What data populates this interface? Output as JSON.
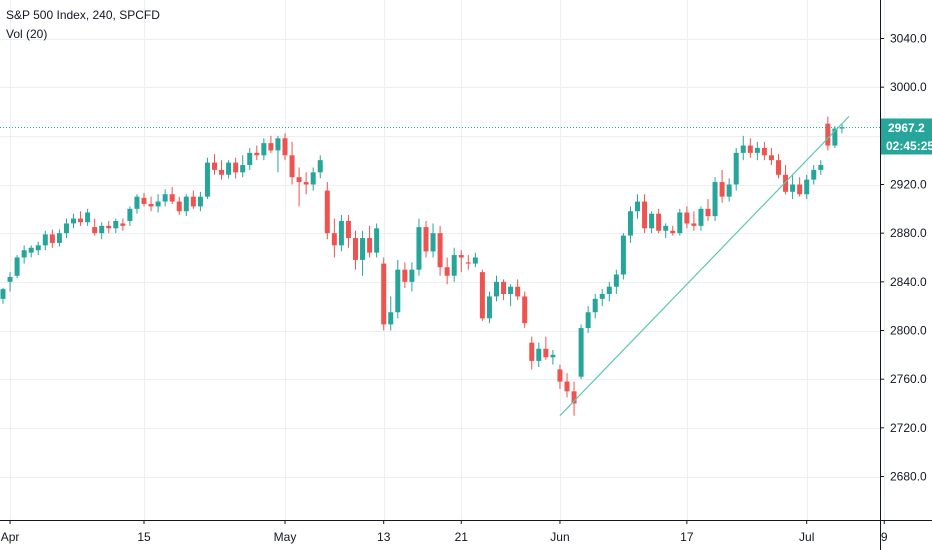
{
  "colors": {
    "up": "#26a69a",
    "down": "#ef5350",
    "grid": "#eceff2",
    "axis_text": "#131722",
    "axis_line": "#131722",
    "price_line": "#26a69a",
    "trendline": "#5cc8b0"
  },
  "legend": {
    "title": "S&P 500 Index, 240, SPCFD",
    "indicator": "Vol (20)"
  },
  "price_axis": {
    "current_price_label": "2967.2",
    "countdown_label": "02:45:25"
  },
  "chart_data": {
    "type": "candlestick",
    "title": "S&P 500 Index, 240, SPCFD",
    "ylim": [
      2660,
      3060
    ],
    "y_ticks": [
      2680,
      2720,
      2760,
      2800,
      2840,
      2880,
      2920,
      2960,
      3000,
      3040
    ],
    "y_tick_labels": [
      "2680.0",
      "2720.0",
      "2760.0",
      "2800.0",
      "2840.0",
      "2880.0",
      "2920.0",
      "",
      "3000.0",
      "3040.0"
    ],
    "x_tick_labels": [
      {
        "label": "Apr",
        "bar": 1
      },
      {
        "label": "15",
        "bar": 20
      },
      {
        "label": "May",
        "bar": 40
      },
      {
        "label": "13",
        "bar": 54
      },
      {
        "label": "21",
        "bar": 65
      },
      {
        "label": "Jun",
        "bar": 79
      },
      {
        "label": "17",
        "bar": 97
      },
      {
        "label": "Jul",
        "bar": 114
      },
      {
        "label": "9",
        "bar": 125
      }
    ],
    "current_price": 2967.2,
    "grid": true,
    "candles": [
      [
        2826,
        2835,
        2822,
        2834
      ],
      [
        2840,
        2848,
        2832,
        2844
      ],
      [
        2845,
        2862,
        2843,
        2860
      ],
      [
        2860,
        2870,
        2855,
        2866
      ],
      [
        2864,
        2870,
        2860,
        2868
      ],
      [
        2866,
        2873,
        2862,
        2870
      ],
      [
        2870,
        2882,
        2866,
        2879
      ],
      [
        2879,
        2883,
        2868,
        2872
      ],
      [
        2872,
        2883,
        2869,
        2880
      ],
      [
        2880,
        2892,
        2876,
        2888
      ],
      [
        2888,
        2896,
        2884,
        2892
      ],
      [
        2892,
        2898,
        2886,
        2889
      ],
      [
        2889,
        2900,
        2886,
        2897
      ],
      [
        2885,
        2892,
        2878,
        2880
      ],
      [
        2880,
        2889,
        2875,
        2886
      ],
      [
        2886,
        2890,
        2880,
        2884
      ],
      [
        2884,
        2892,
        2880,
        2890
      ],
      [
        2888,
        2892,
        2882,
        2886
      ],
      [
        2890,
        2902,
        2886,
        2900
      ],
      [
        2900,
        2912,
        2896,
        2910
      ],
      [
        2909,
        2913,
        2902,
        2904
      ],
      [
        2904,
        2910,
        2898,
        2902
      ],
      [
        2902,
        2912,
        2897,
        2906
      ],
      [
        2906,
        2916,
        2902,
        2912
      ],
      [
        2912,
        2918,
        2904,
        2906
      ],
      [
        2906,
        2910,
        2895,
        2898
      ],
      [
        2898,
        2912,
        2894,
        2910
      ],
      [
        2910,
        2915,
        2900,
        2902
      ],
      [
        2902,
        2914,
        2898,
        2910
      ],
      [
        2910,
        2942,
        2908,
        2938
      ],
      [
        2938,
        2945,
        2928,
        2932
      ],
      [
        2932,
        2940,
        2924,
        2928
      ],
      [
        2928,
        2940,
        2925,
        2938
      ],
      [
        2938,
        2942,
        2925,
        2930
      ],
      [
        2930,
        2944,
        2926,
        2936
      ],
      [
        2936,
        2950,
        2932,
        2946
      ],
      [
        2946,
        2952,
        2940,
        2944
      ],
      [
        2944,
        2958,
        2940,
        2954
      ],
      [
        2954,
        2960,
        2946,
        2948
      ],
      [
        2948,
        2960,
        2930,
        2958
      ],
      [
        2958,
        2962,
        2940,
        2944
      ],
      [
        2944,
        2955,
        2920,
        2926
      ],
      [
        2926,
        2934,
        2902,
        2922
      ],
      [
        2922,
        2930,
        2912,
        2920
      ],
      [
        2920,
        2934,
        2915,
        2930
      ],
      [
        2930,
        2944,
        2925,
        2940
      ],
      [
        2915,
        2922,
        2875,
        2880
      ],
      [
        2880,
        2892,
        2860,
        2870
      ],
      [
        2870,
        2895,
        2865,
        2890
      ],
      [
        2890,
        2895,
        2868,
        2876
      ],
      [
        2876,
        2882,
        2850,
        2858
      ],
      [
        2858,
        2882,
        2845,
        2876
      ],
      [
        2876,
        2886,
        2860,
        2864
      ],
      [
        2864,
        2888,
        2860,
        2884
      ],
      [
        2855,
        2860,
        2800,
        2805
      ],
      [
        2805,
        2828,
        2800,
        2815
      ],
      [
        2815,
        2858,
        2810,
        2850
      ],
      [
        2850,
        2856,
        2835,
        2840
      ],
      [
        2840,
        2856,
        2832,
        2850
      ],
      [
        2850,
        2892,
        2845,
        2885
      ],
      [
        2885,
        2890,
        2860,
        2865
      ],
      [
        2865,
        2888,
        2860,
        2880
      ],
      [
        2880,
        2886,
        2845,
        2852
      ],
      [
        2852,
        2860,
        2838,
        2845
      ],
      [
        2845,
        2868,
        2840,
        2862
      ],
      [
        2862,
        2866,
        2848,
        2860
      ],
      [
        2856,
        2862,
        2850,
        2855
      ],
      [
        2855,
        2864,
        2852,
        2860
      ],
      [
        2848,
        2850,
        2808,
        2810
      ],
      [
        2810,
        2832,
        2806,
        2828
      ],
      [
        2828,
        2845,
        2824,
        2840
      ],
      [
        2840,
        2842,
        2825,
        2830
      ],
      [
        2830,
        2838,
        2820,
        2836
      ],
      [
        2836,
        2842,
        2825,
        2828
      ],
      [
        2828,
        2832,
        2802,
        2806
      ],
      [
        2790,
        2795,
        2768,
        2775
      ],
      [
        2775,
        2790,
        2770,
        2785
      ],
      [
        2785,
        2795,
        2776,
        2778
      ],
      [
        2778,
        2784,
        2772,
        2780
      ],
      [
        2768,
        2772,
        2752,
        2758
      ],
      [
        2758,
        2765,
        2745,
        2750
      ],
      [
        2750,
        2758,
        2730,
        2740
      ],
      [
        2762,
        2805,
        2760,
        2802
      ],
      [
        2802,
        2820,
        2798,
        2815
      ],
      [
        2815,
        2830,
        2810,
        2826
      ],
      [
        2826,
        2834,
        2820,
        2830
      ],
      [
        2830,
        2840,
        2824,
        2836
      ],
      [
        2836,
        2850,
        2830,
        2846
      ],
      [
        2846,
        2880,
        2842,
        2878
      ],
      [
        2878,
        2902,
        2872,
        2898
      ],
      [
        2898,
        2912,
        2892,
        2906
      ],
      [
        2906,
        2912,
        2880,
        2884
      ],
      [
        2884,
        2898,
        2880,
        2896
      ],
      [
        2896,
        2900,
        2880,
        2882
      ],
      [
        2882,
        2888,
        2876,
        2886
      ],
      [
        2882,
        2886,
        2878,
        2880
      ],
      [
        2880,
        2900,
        2878,
        2897
      ],
      [
        2897,
        2902,
        2884,
        2888
      ],
      [
        2888,
        2898,
        2882,
        2886
      ],
      [
        2886,
        2902,
        2882,
        2900
      ],
      [
        2900,
        2908,
        2890,
        2894
      ],
      [
        2894,
        2926,
        2890,
        2922
      ],
      [
        2922,
        2932,
        2905,
        2910
      ],
      [
        2910,
        2925,
        2906,
        2920
      ],
      [
        2920,
        2950,
        2915,
        2946
      ],
      [
        2946,
        2960,
        2940,
        2952
      ],
      [
        2952,
        2958,
        2942,
        2946
      ],
      [
        2946,
        2955,
        2940,
        2950
      ],
      [
        2950,
        2955,
        2940,
        2944
      ],
      [
        2944,
        2950,
        2936,
        2940
      ],
      [
        2940,
        2945,
        2925,
        2928
      ],
      [
        2928,
        2936,
        2912,
        2914
      ],
      [
        2914,
        2928,
        2908,
        2920
      ],
      [
        2920,
        2926,
        2910,
        2912
      ],
      [
        2912,
        2928,
        2908,
        2924
      ],
      [
        2924,
        2936,
        2920,
        2932
      ],
      [
        2932,
        2940,
        2928,
        2936
      ],
      [
        2970,
        2976,
        2948,
        2952
      ],
      [
        2952,
        2968,
        2950,
        2966
      ],
      [
        2966,
        2970,
        2962,
        2967
      ]
    ],
    "trendline": {
      "from": {
        "bar": 79,
        "price": 2730
      },
      "to": {
        "bar": 120,
        "price": 2976
      }
    }
  }
}
